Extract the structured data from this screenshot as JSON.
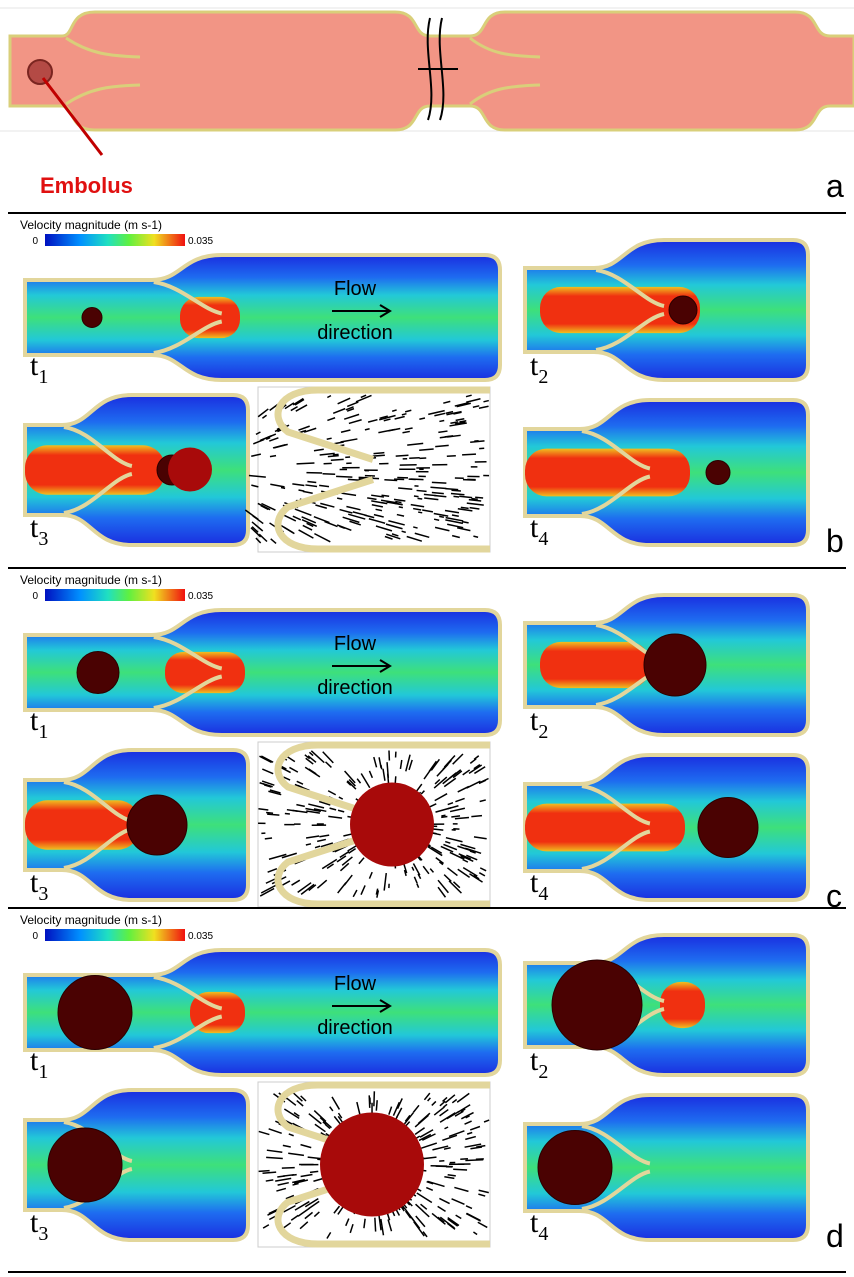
{
  "figure": {
    "panel_a": {
      "label": "a",
      "embolus_label": "Embolus"
    },
    "panels": [
      {
        "label": "b",
        "colorbar": {
          "title": "Velocity magnitude (m s-1)",
          "min": 0,
          "max": 0.035
        },
        "flow_label": [
          "Flow",
          "direction"
        ],
        "time_labels": [
          {
            "base": "t",
            "sub": "1"
          },
          {
            "base": "t",
            "sub": "2"
          },
          {
            "base": "t",
            "sub": "3"
          },
          {
            "base": "t",
            "sub": "4"
          }
        ]
      },
      {
        "label": "c",
        "colorbar": {
          "title": "Velocity magnitude (m s-1)",
          "min": 0,
          "max": 0.035
        },
        "flow_label": [
          "Flow",
          "direction"
        ],
        "time_labels": [
          {
            "base": "t",
            "sub": "1"
          },
          {
            "base": "t",
            "sub": "2"
          },
          {
            "base": "t",
            "sub": "3"
          },
          {
            "base": "t",
            "sub": "4"
          }
        ]
      },
      {
        "label": "d",
        "colorbar": {
          "title": "Velocity magnitude (m s-1)",
          "min": 0,
          "max": 0.035
        },
        "flow_label": [
          "Flow",
          "direction"
        ],
        "time_labels": [
          {
            "base": "t",
            "sub": "1"
          },
          {
            "base": "t",
            "sub": "2"
          },
          {
            "base": "t",
            "sub": "3"
          },
          {
            "base": "t",
            "sub": "4"
          }
        ]
      }
    ]
  }
}
